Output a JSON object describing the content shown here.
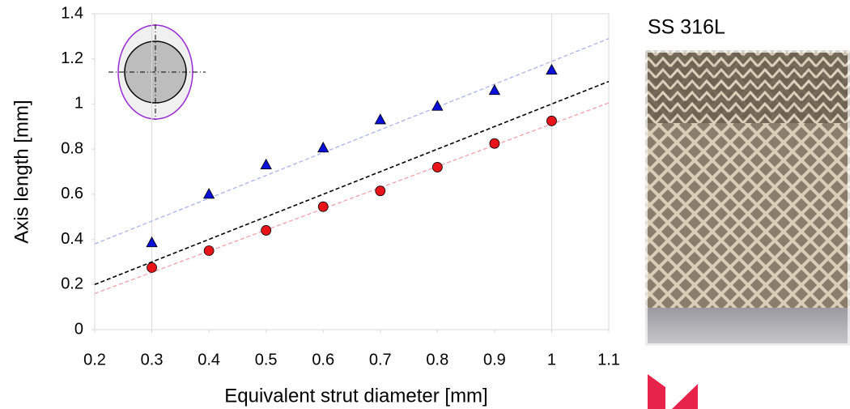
{
  "chart_data": {
    "type": "scatter",
    "x_label": "Equivalent strut diameter [mm]",
    "y_label": "Axis length [mm]",
    "xlim": [
      0.2,
      1.1
    ],
    "ylim": [
      0,
      1.4
    ],
    "xticks": [
      0.2,
      0.3,
      0.4,
      0.5,
      0.6,
      0.7,
      0.8,
      0.9,
      1,
      1.1
    ],
    "yticks": [
      0,
      0.2,
      0.4,
      0.6,
      0.8,
      1,
      1.2,
      1.4
    ],
    "xgrid": [
      0.3,
      1
    ],
    "series": [
      {
        "marker": "triangle",
        "color": "#0a10d8",
        "x": [
          0.3,
          0.4,
          0.5,
          0.6,
          0.7,
          0.8,
          0.9,
          1
        ],
        "values": [
          0.385,
          0.6,
          0.73,
          0.805,
          0.93,
          0.99,
          1.06,
          1.15
        ]
      },
      {
        "marker": "circle",
        "color": "#e8141a",
        "x": [
          0.3,
          0.4,
          0.5,
          0.6,
          0.7,
          0.8,
          0.9,
          1
        ],
        "values": [
          0.275,
          0.35,
          0.44,
          0.545,
          0.615,
          0.72,
          0.825,
          0.925
        ]
      }
    ],
    "trend_lines": [
      {
        "color": "#000000",
        "x": [
          0.2,
          1.1
        ],
        "values": [
          0.2,
          1.1
        ]
      },
      {
        "color": "#a9b4ee",
        "x": [
          0.2,
          1.1
        ],
        "values": [
          0.38,
          1.29
        ]
      },
      {
        "color": "#f4a0a8",
        "x": [
          0.2,
          1.1
        ],
        "values": [
          0.16,
          1.005
        ]
      }
    ]
  },
  "photo_caption": "SS 316L"
}
